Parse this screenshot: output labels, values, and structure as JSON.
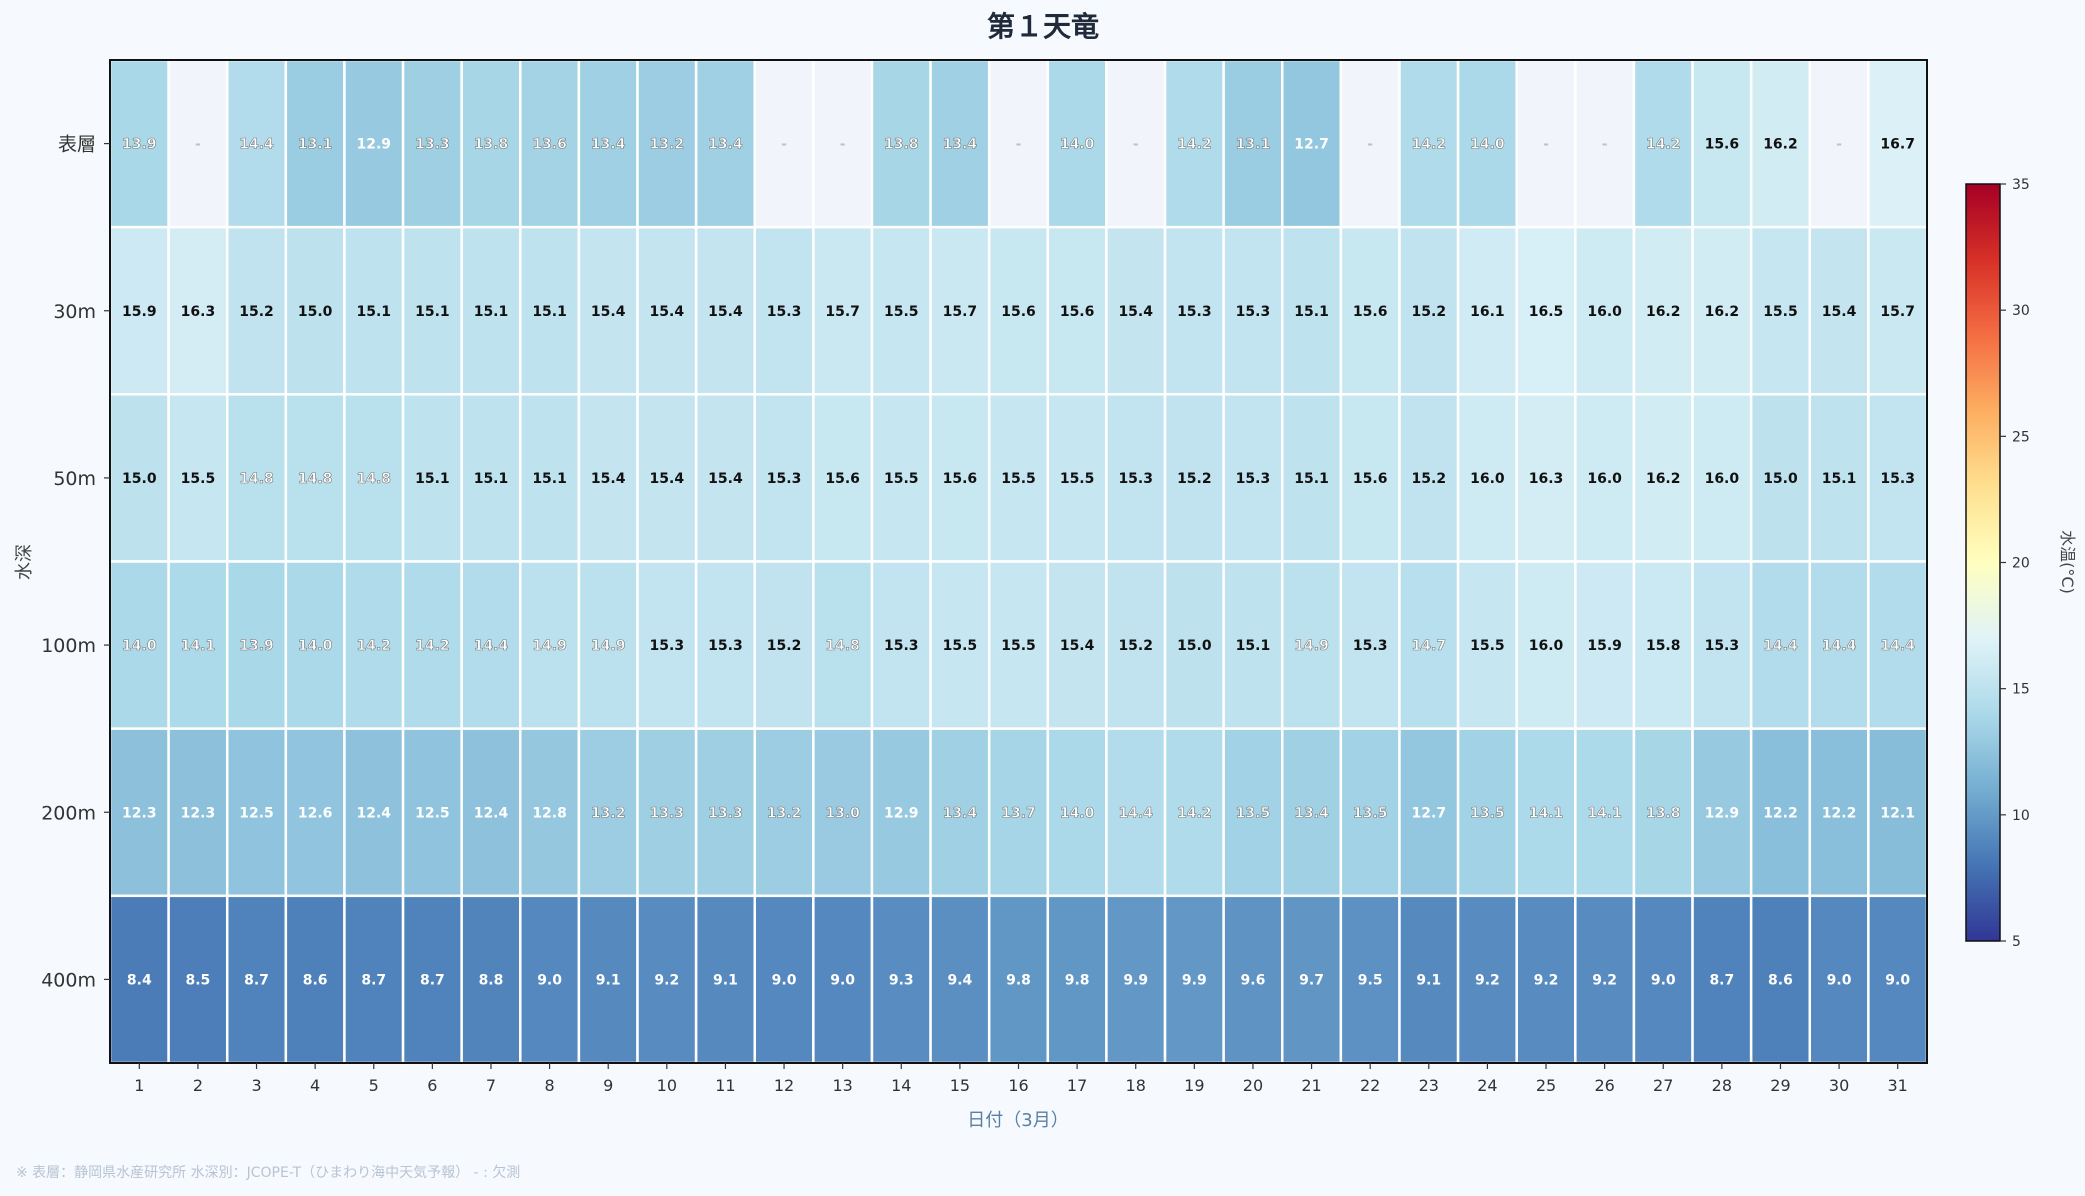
{
  "chart_data": {
    "type": "heatmap",
    "title": "第１天竜",
    "xlabel": "日付（3月）",
    "ylabel": "水深",
    "colorbar_label": "水温(°C)",
    "colorbar_range": [
      5,
      35
    ],
    "colorbar_ticks": [
      "5",
      "10",
      "15",
      "20",
      "25",
      "30",
      "35"
    ],
    "colormap": "RdYlBu_r",
    "x": [
      "1",
      "2",
      "3",
      "4",
      "5",
      "6",
      "7",
      "8",
      "9",
      "10",
      "11",
      "12",
      "13",
      "14",
      "15",
      "16",
      "17",
      "18",
      "19",
      "20",
      "21",
      "22",
      "23",
      "24",
      "25",
      "26",
      "27",
      "28",
      "29",
      "30",
      "31"
    ],
    "rows": [
      {
        "label": "表層",
        "values": [
          13.9,
          null,
          14.4,
          13.1,
          12.9,
          13.3,
          13.8,
          13.6,
          13.4,
          13.2,
          13.4,
          null,
          null,
          13.8,
          13.4,
          null,
          14.0,
          null,
          14.2,
          13.1,
          12.7,
          null,
          14.2,
          14.0,
          null,
          null,
          14.2,
          15.6,
          16.2,
          null,
          16.7
        ]
      },
      {
        "label": "30m",
        "values": [
          15.9,
          16.3,
          15.2,
          15.0,
          15.1,
          15.1,
          15.1,
          15.1,
          15.4,
          15.4,
          15.4,
          15.3,
          15.7,
          15.5,
          15.7,
          15.6,
          15.6,
          15.4,
          15.3,
          15.3,
          15.1,
          15.6,
          15.2,
          16.1,
          16.5,
          16.0,
          16.2,
          16.2,
          15.5,
          15.4,
          15.7
        ]
      },
      {
        "label": "50m",
        "values": [
          15.0,
          15.5,
          14.8,
          14.8,
          14.8,
          15.1,
          15.1,
          15.1,
          15.4,
          15.4,
          15.4,
          15.3,
          15.6,
          15.5,
          15.6,
          15.5,
          15.5,
          15.3,
          15.2,
          15.3,
          15.1,
          15.6,
          15.2,
          16.0,
          16.3,
          16.0,
          16.2,
          16.0,
          15.0,
          15.1,
          15.3
        ]
      },
      {
        "label": "100m",
        "values": [
          14.0,
          14.1,
          13.9,
          14.0,
          14.2,
          14.2,
          14.4,
          14.9,
          14.9,
          15.3,
          15.3,
          15.2,
          14.8,
          15.3,
          15.5,
          15.5,
          15.4,
          15.2,
          15.0,
          15.1,
          14.9,
          15.3,
          14.7,
          15.5,
          16.0,
          15.9,
          15.8,
          15.3,
          14.4,
          14.4,
          14.4
        ]
      },
      {
        "label": "200m",
        "values": [
          12.3,
          12.3,
          12.5,
          12.6,
          12.4,
          12.5,
          12.4,
          12.8,
          13.2,
          13.3,
          13.3,
          13.2,
          13.0,
          12.9,
          13.4,
          13.7,
          14.0,
          14.4,
          14.2,
          13.5,
          13.4,
          13.5,
          12.7,
          13.5,
          14.1,
          14.1,
          13.8,
          12.9,
          12.2,
          12.2,
          12.1
        ]
      },
      {
        "label": "400m",
        "values": [
          8.4,
          8.5,
          8.7,
          8.6,
          8.7,
          8.7,
          8.8,
          9.0,
          9.1,
          9.2,
          9.1,
          9.0,
          9.0,
          9.3,
          9.4,
          9.8,
          9.8,
          9.9,
          9.9,
          9.6,
          9.7,
          9.5,
          9.1,
          9.2,
          9.2,
          9.2,
          9.0,
          8.7,
          8.6,
          9.0,
          9.0
        ]
      }
    ],
    "missing_label": "-"
  },
  "note": "※ 表層：静岡県水産研究所  水深別：JCOPE-T（ひまわり海中天気予報）  - : 欠測"
}
